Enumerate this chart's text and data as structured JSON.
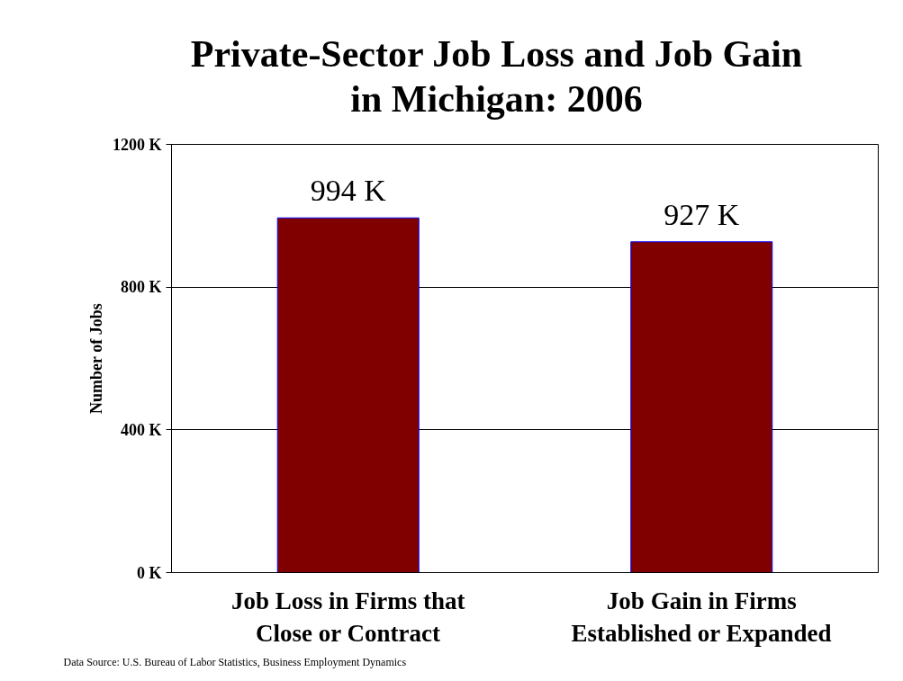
{
  "chart_data": {
    "type": "bar",
    "title": "Private-Sector Job Loss and Job Gain\nin Michigan: 2006",
    "ylabel": "Number of Jobs",
    "categories": [
      "Job Loss in Firms that\nClose or Contract",
      "Job Gain in Firms\nEstablished or Expanded"
    ],
    "values": [
      994,
      927
    ],
    "color": "#800000",
    "value_labels": [
      "994 K",
      "927 K"
    ],
    "ylim": [
      0,
      1200
    ],
    "yticks": [
      {
        "value": 0,
        "label": "0 K"
      },
      {
        "value": 400,
        "label": "400 K"
      },
      {
        "value": 800,
        "label": "800 K"
      },
      {
        "value": 1200,
        "label": "1200 K"
      }
    ],
    "grid": "y",
    "annotations": [
      "Data Source: U.S. Bureau of Labor Statistics, Business Employment Dynamics"
    ]
  }
}
